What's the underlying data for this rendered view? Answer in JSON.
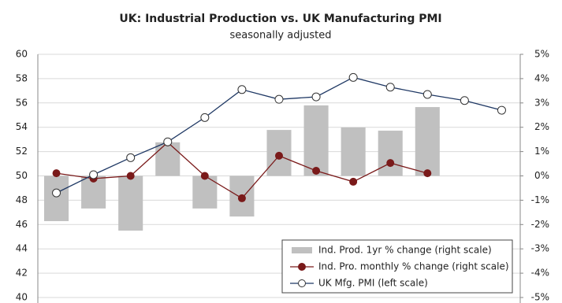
{
  "chart_data": {
    "type": "combo",
    "title": "UK: Industrial Production vs. UK Manufacturing PMI",
    "subtitle": "seasonally adjusted",
    "categories": [
      null,
      null,
      null,
      null,
      null,
      null,
      null,
      null,
      null,
      null,
      null,
      null,
      null
    ],
    "ylim": [
      40,
      60
    ],
    "yticks": [
      40,
      42,
      44,
      46,
      48,
      50,
      52,
      54,
      56,
      58,
      60
    ],
    "y2lim": [
      -5,
      5
    ],
    "y2ticks": [
      {
        "value": -5,
        "label": "-5%"
      },
      {
        "value": -4,
        "label": "-4%"
      },
      {
        "value": -3,
        "label": "-3%"
      },
      {
        "value": -2,
        "label": "-2%"
      },
      {
        "value": -1,
        "label": "-1%"
      },
      {
        "value": 0,
        "label": "0%"
      },
      {
        "value": 1,
        "label": "1%"
      },
      {
        "value": 2,
        "label": "2%"
      },
      {
        "value": 3,
        "label": "3%"
      },
      {
        "value": 4,
        "label": "4%"
      },
      {
        "value": 5,
        "label": "5%"
      }
    ],
    "grid": true,
    "legend": "lower right",
    "series": [
      {
        "name": "Ind. Prod. 1yr % change (right scale)",
        "type": "bar",
        "axis": "y2",
        "color": "#c0c0c0",
        "values": [
          -1.86,
          -1.34,
          -2.25,
          1.38,
          -1.34,
          -1.67,
          1.89,
          2.9,
          1.99,
          1.86,
          2.83,
          null,
          null
        ]
      },
      {
        "name": "Ind. Pro. monthly % change (right scale)",
        "type": "line",
        "axis": "y2",
        "color": "#7a1a1a",
        "marker": "filled",
        "values": [
          0.11,
          -0.11,
          0,
          1.38,
          0,
          -0.92,
          0.83,
          0.21,
          -0.24,
          0.53,
          0.11,
          null,
          null
        ]
      },
      {
        "name": "UK Mfg. PMI (left scale)",
        "type": "line",
        "color": "#1f3864",
        "marker": "open",
        "values": [
          48.6,
          50.1,
          51.5,
          52.8,
          54.8,
          57.1,
          56.3,
          56.5,
          58.1,
          57.3,
          56.7,
          56.2,
          55.4
        ]
      }
    ]
  }
}
